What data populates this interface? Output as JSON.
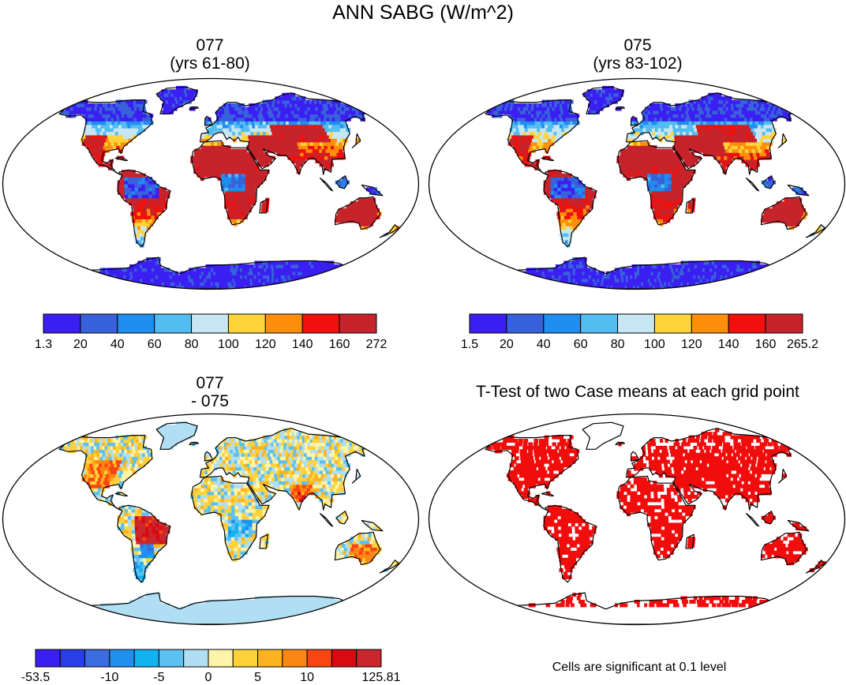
{
  "figure": {
    "title": "ANN SABG (W/m^2)",
    "note": "Cells are significant at 0.1 level"
  },
  "colors": {
    "seq9": [
      "#3b1ff2",
      "#3862dc",
      "#1f8ef0",
      "#52bdf0",
      "#c6e6f4",
      "#ffd43b",
      "#ff8f0a",
      "#f0100d",
      "#c7232a"
    ],
    "div14": [
      "#3b1ff2",
      "#2a3ee8",
      "#3b6ce0",
      "#2090ef",
      "#10b2f0",
      "#5cc1f0",
      "#b0def3",
      "#fff3a8",
      "#ffd23a",
      "#fcb31e",
      "#fc8613",
      "#f9450f",
      "#db0a10",
      "#c9272d"
    ],
    "ttest": "#f20d0d",
    "coast": "#000000"
  },
  "chart_data": [
    {
      "type": "heatmap",
      "panel": "top-left",
      "title_lines": [
        "077",
        "(yrs 61-80)"
      ],
      "colorbar": {
        "labels": [
          "1.3",
          "20",
          "40",
          "60",
          "80",
          "100",
          "120",
          "140",
          "160",
          "272"
        ],
        "bins": 9
      }
    },
    {
      "type": "heatmap",
      "panel": "top-right",
      "title_lines": [
        "075",
        "(yrs 83-102)"
      ],
      "colorbar": {
        "labels": [
          "1.5",
          "20",
          "40",
          "60",
          "80",
          "100",
          "120",
          "140",
          "160",
          "265.2"
        ],
        "bins": 9
      }
    },
    {
      "type": "heatmap",
      "panel": "bottom-left",
      "title_lines": [
        "077",
        "- 075"
      ],
      "colorbar": {
        "labels": [
          "-53.5",
          "",
          "",
          "-10",
          "",
          "-5",
          "",
          "0",
          "",
          "5",
          "",
          "10",
          "",
          "",
          "125.81"
        ],
        "bins": 14
      }
    },
    {
      "type": "heatmap",
      "panel": "bottom-right",
      "title_lines": [
        "T-Test of two Case means at each grid point"
      ],
      "colorbar": null
    }
  ]
}
